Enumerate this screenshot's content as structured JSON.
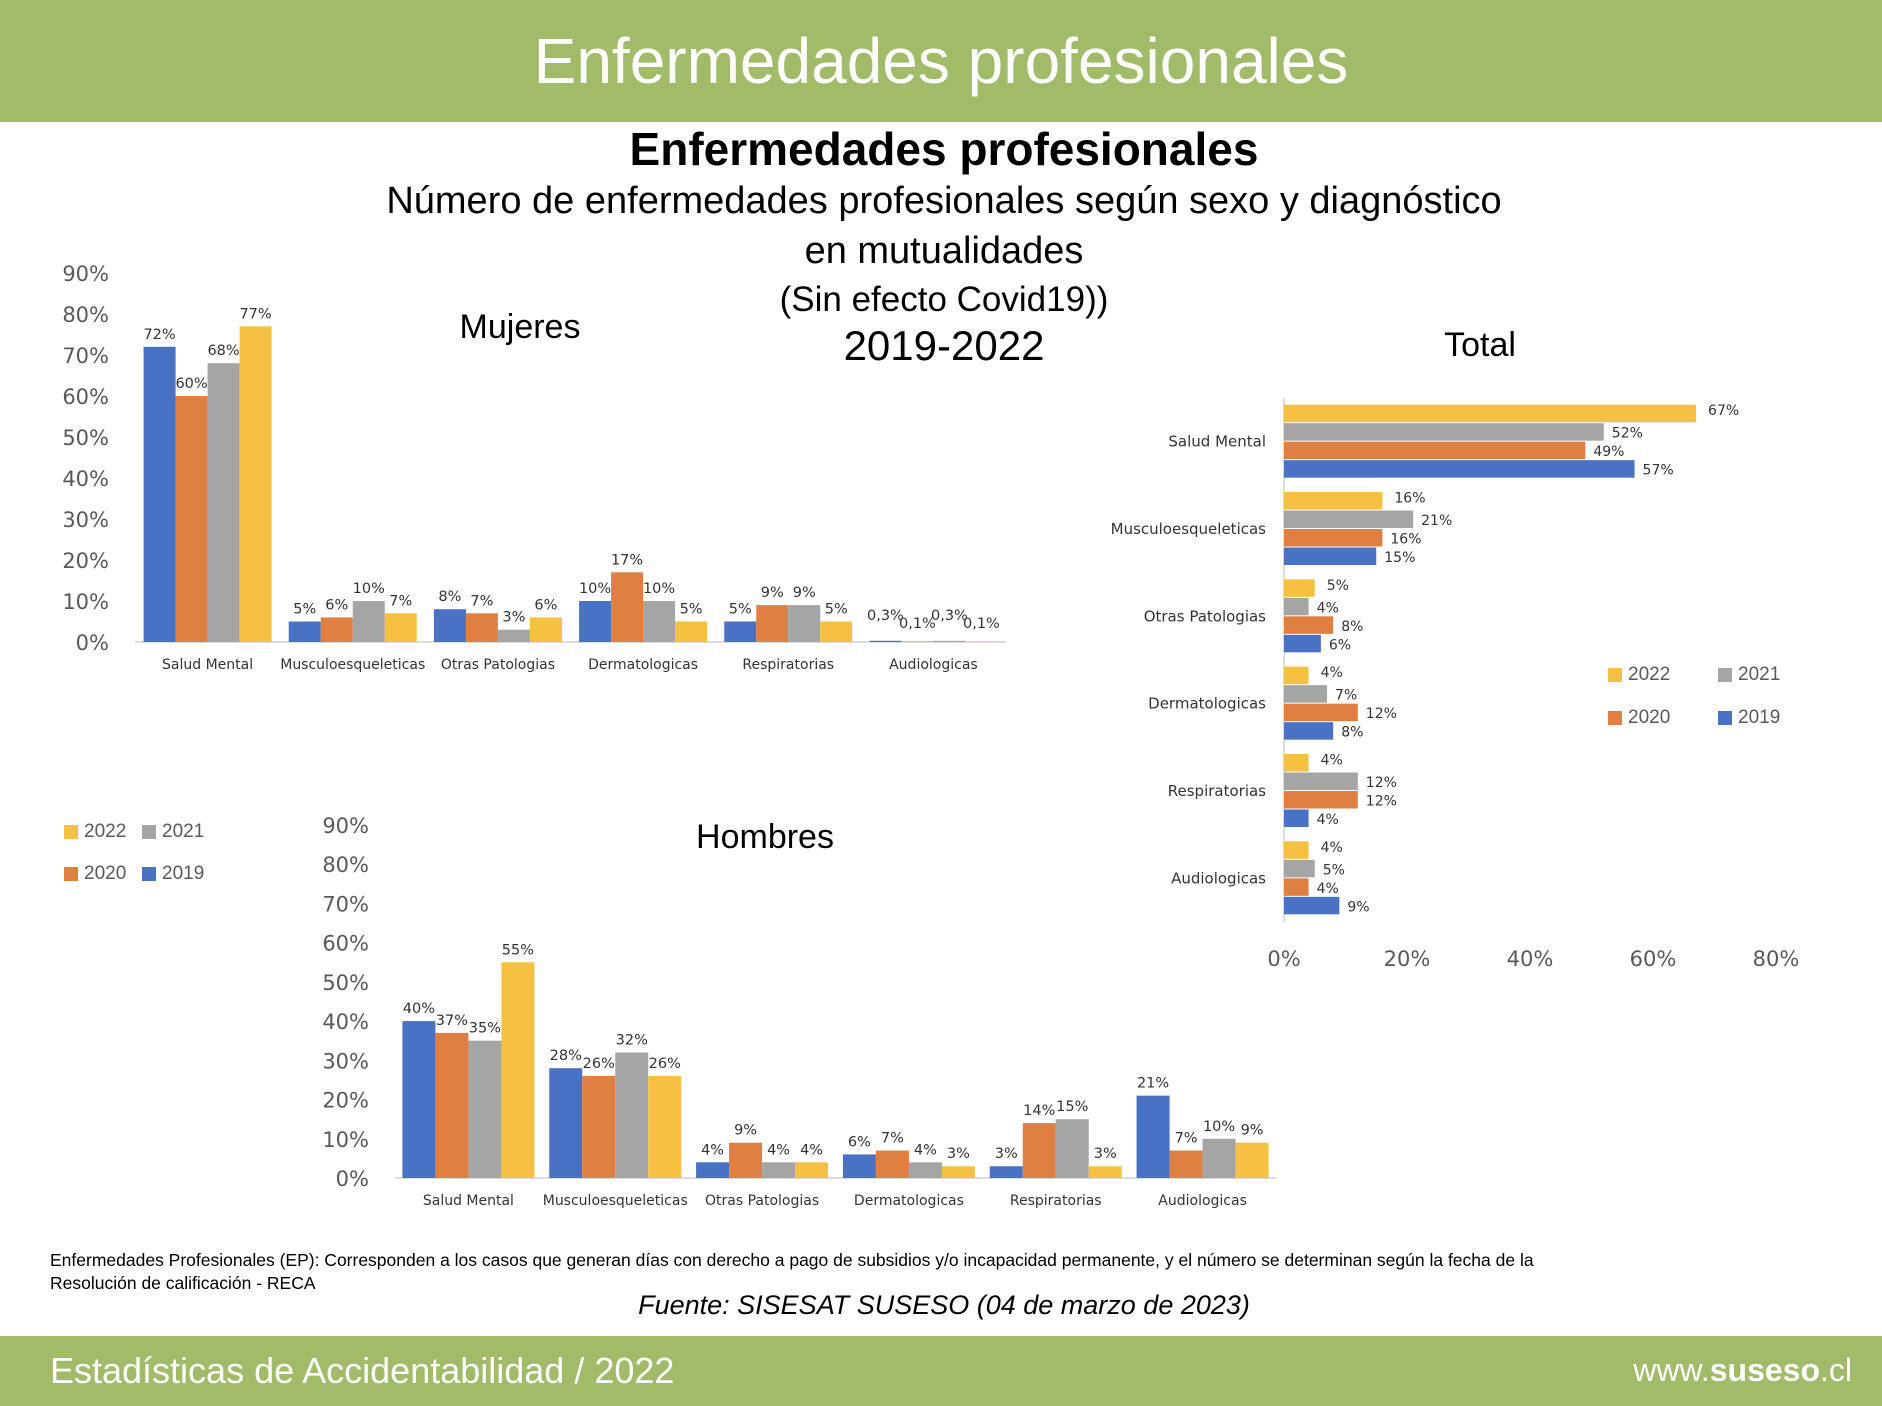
{
  "header": {
    "title": "Enfermedades profesionales"
  },
  "titles": {
    "main": "Enfermedades profesionales",
    "sub1": "Número de enfermedades profesionales según sexo y diagnóstico",
    "sub2": "en mutualidades",
    "sub3": "(Sin efecto Covid19))",
    "years": "2019-2022"
  },
  "colors": {
    "2019": "#4a72c4",
    "2020": "#df7f42",
    "2021": "#a5a5a5",
    "2022": "#f6c142"
  },
  "chart_data": [
    {
      "type": "bar",
      "title": "Mujeres",
      "categories": [
        "Salud Mental",
        "Musculoesqueleticas",
        "Otras Patologias",
        "Dermatologicas",
        "Respiratorias",
        "Audiologicas"
      ],
      "ylim": [
        0,
        90
      ],
      "yticks": [
        "0%",
        "10%",
        "20%",
        "30%",
        "40%",
        "50%",
        "60%",
        "70%",
        "80%",
        "90%"
      ],
      "series": [
        {
          "name": "2019",
          "values": [
            72,
            5,
            8,
            10,
            5,
            0.3
          ],
          "labels": [
            "72%",
            "5%",
            "8%",
            "10%",
            "5%",
            "0,3%"
          ]
        },
        {
          "name": "2020",
          "values": [
            60,
            6,
            7,
            17,
            9,
            0.1
          ],
          "labels": [
            "60%",
            "6%",
            "7%",
            "17%",
            "9%",
            "0,1%"
          ]
        },
        {
          "name": "2021",
          "values": [
            68,
            10,
            3,
            10,
            9,
            0.3
          ],
          "labels": [
            "68%",
            "10%",
            "3%",
            "10%",
            "9%",
            "0,3%"
          ]
        },
        {
          "name": "2022",
          "values": [
            77,
            7,
            6,
            5,
            5,
            0.1
          ],
          "labels": [
            "77%",
            "7%",
            "6%",
            "5%",
            "5%",
            "0,1%"
          ]
        }
      ]
    },
    {
      "type": "bar",
      "title": "Hombres",
      "categories": [
        "Salud Mental",
        "Musculoesqueleticas",
        "Otras Patologias",
        "Dermatologicas",
        "Respiratorias",
        "Audiologicas"
      ],
      "ylim": [
        0,
        90
      ],
      "yticks": [
        "0%",
        "10%",
        "20%",
        "30%",
        "40%",
        "50%",
        "60%",
        "70%",
        "80%",
        "90%"
      ],
      "series": [
        {
          "name": "2019",
          "values": [
            40,
            28,
            4,
            6,
            3,
            21
          ],
          "labels": [
            "40%",
            "28%",
            "4%",
            "6%",
            "3%",
            "21%"
          ]
        },
        {
          "name": "2020",
          "values": [
            37,
            26,
            9,
            7,
            14,
            7
          ],
          "labels": [
            "37%",
            "26%",
            "9%",
            "7%",
            "14%",
            "7%"
          ]
        },
        {
          "name": "2021",
          "values": [
            35,
            32,
            4,
            4,
            15,
            10
          ],
          "labels": [
            "35%",
            "32%",
            "4%",
            "4%",
            "15%",
            "10%"
          ]
        },
        {
          "name": "2022",
          "values": [
            55,
            26,
            4,
            3,
            3,
            9
          ],
          "labels": [
            "55%",
            "26%",
            "4%",
            "3%",
            "3%",
            "9%"
          ]
        }
      ]
    },
    {
      "type": "bar",
      "orientation": "horizontal",
      "title": "Total",
      "categories": [
        "Salud Mental",
        "Musculoesqueleticas",
        "Otras Patologias",
        "Dermatologicas",
        "Respiratorias",
        "Audiologicas"
      ],
      "xlim": [
        0,
        80
      ],
      "xticks": [
        "0%",
        "20%",
        "40%",
        "60%",
        "80%"
      ],
      "series": [
        {
          "name": "2022",
          "values": [
            67,
            16,
            5,
            4,
            4,
            4
          ],
          "labels": [
            "67%",
            "16%",
            "5%",
            "4%",
            "4%",
            "4%"
          ]
        },
        {
          "name": "2021",
          "values": [
            52,
            21,
            4,
            7,
            12,
            5
          ],
          "labels": [
            "52%",
            "21%",
            "4%",
            "7%",
            "12%",
            "5%"
          ]
        },
        {
          "name": "2020",
          "values": [
            49,
            16,
            8,
            12,
            12,
            4
          ],
          "labels": [
            "49%",
            "16%",
            "8%",
            "12%",
            "12%",
            "4%"
          ]
        },
        {
          "name": "2019",
          "values": [
            57,
            15,
            6,
            8,
            4,
            9
          ],
          "labels": [
            "57%",
            "15%",
            "6%",
            "8%",
            "4%",
            "9%"
          ]
        }
      ]
    }
  ],
  "legend": {
    "left": [
      "2022",
      "2021",
      "2020",
      "2019"
    ],
    "right": [
      "2022",
      "2021",
      "2020",
      "2019"
    ]
  },
  "note": "Enfermedades Profesionales (EP): Corresponden a los casos que generan días con derecho a pago de subsidios y/o incapacidad permanente, y el número se determinan según la fecha de la Resolución de calificación - RECA",
  "source": "Fuente: SISESAT SUSESO (04 de marzo de 2023)",
  "footer": {
    "left": "Estadísticas de Accidentabilidad / 2022",
    "url_prefix": "www.",
    "url_brand": "suseso",
    "url_suffix": ".cl"
  }
}
